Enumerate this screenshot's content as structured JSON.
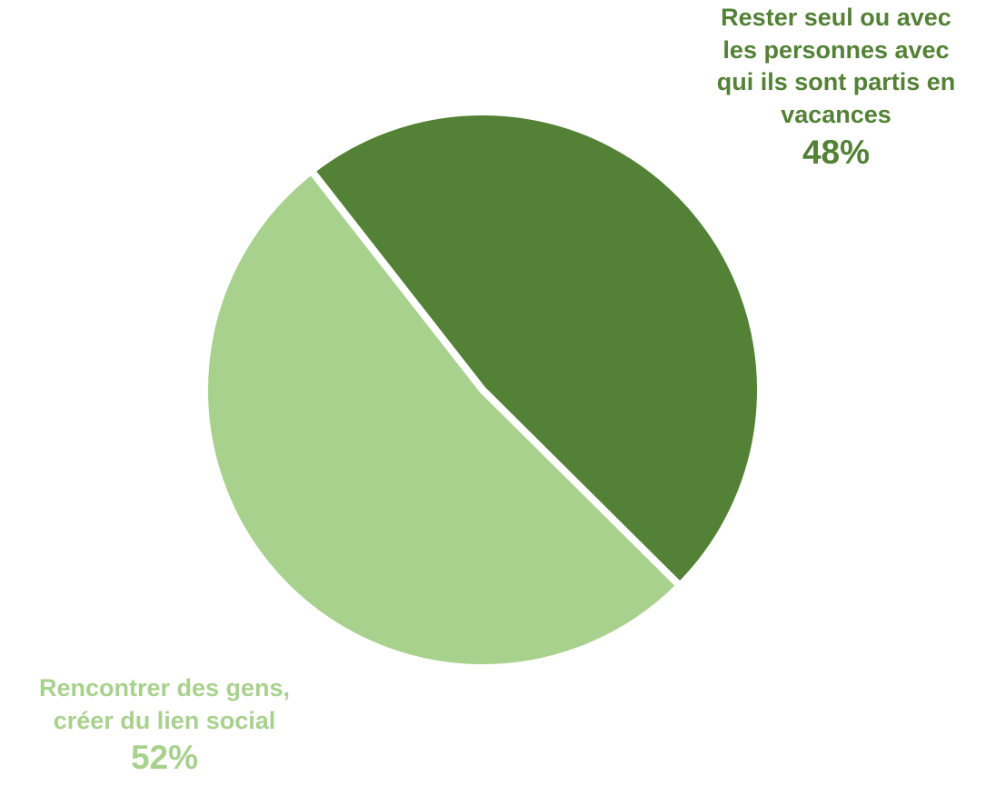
{
  "chart_data": {
    "type": "pie",
    "title": "",
    "slices": [
      {
        "label_lines": [
          "Rester seul ou avec",
          "les personnes avec",
          "qui ils sont partis en",
          "vacances"
        ],
        "value": 48,
        "value_label": "48%",
        "color": "#538135"
      },
      {
        "label_lines": [
          "Rencontrer des gens,",
          "créer du lien social"
        ],
        "value": 52,
        "value_label": "52%",
        "color": "#a9d18e"
      }
    ],
    "start_angle_deg": 322,
    "legend": "none",
    "separator_color": "#ffffff"
  }
}
